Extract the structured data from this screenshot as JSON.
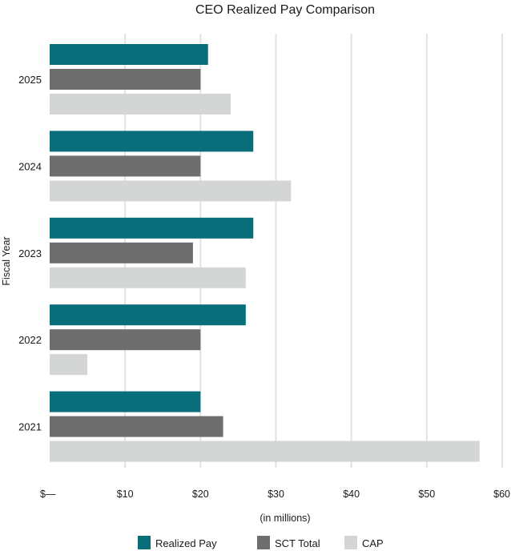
{
  "chart_data": {
    "type": "bar",
    "orientation": "horizontal",
    "title": "CEO Realized Pay Comparison",
    "xlabel": "(in millions)",
    "ylabel": "Fiscal Year",
    "categories": [
      "2025",
      "2024",
      "2023",
      "2022",
      "2021"
    ],
    "series": [
      {
        "name": "Realized Pay",
        "color": "#0a6e7a",
        "values": [
          21,
          27,
          27,
          26,
          20
        ]
      },
      {
        "name": "SCT Total",
        "color": "#6e6e6e",
        "values": [
          20,
          20,
          19,
          20,
          23
        ]
      },
      {
        "name": "CAP",
        "color": "#d4d6d6",
        "values": [
          24,
          32,
          26,
          5,
          57
        ]
      }
    ],
    "xlim": [
      0,
      60
    ],
    "xticks": [
      0,
      10,
      20,
      30,
      40,
      50,
      60
    ],
    "xtick_labels": [
      "$—",
      "$10",
      "$20",
      "$30",
      "$40",
      "$50",
      "$60"
    ],
    "grid": "vertical",
    "grid_color": "#e2e2e2",
    "legend_position": "bottom"
  }
}
